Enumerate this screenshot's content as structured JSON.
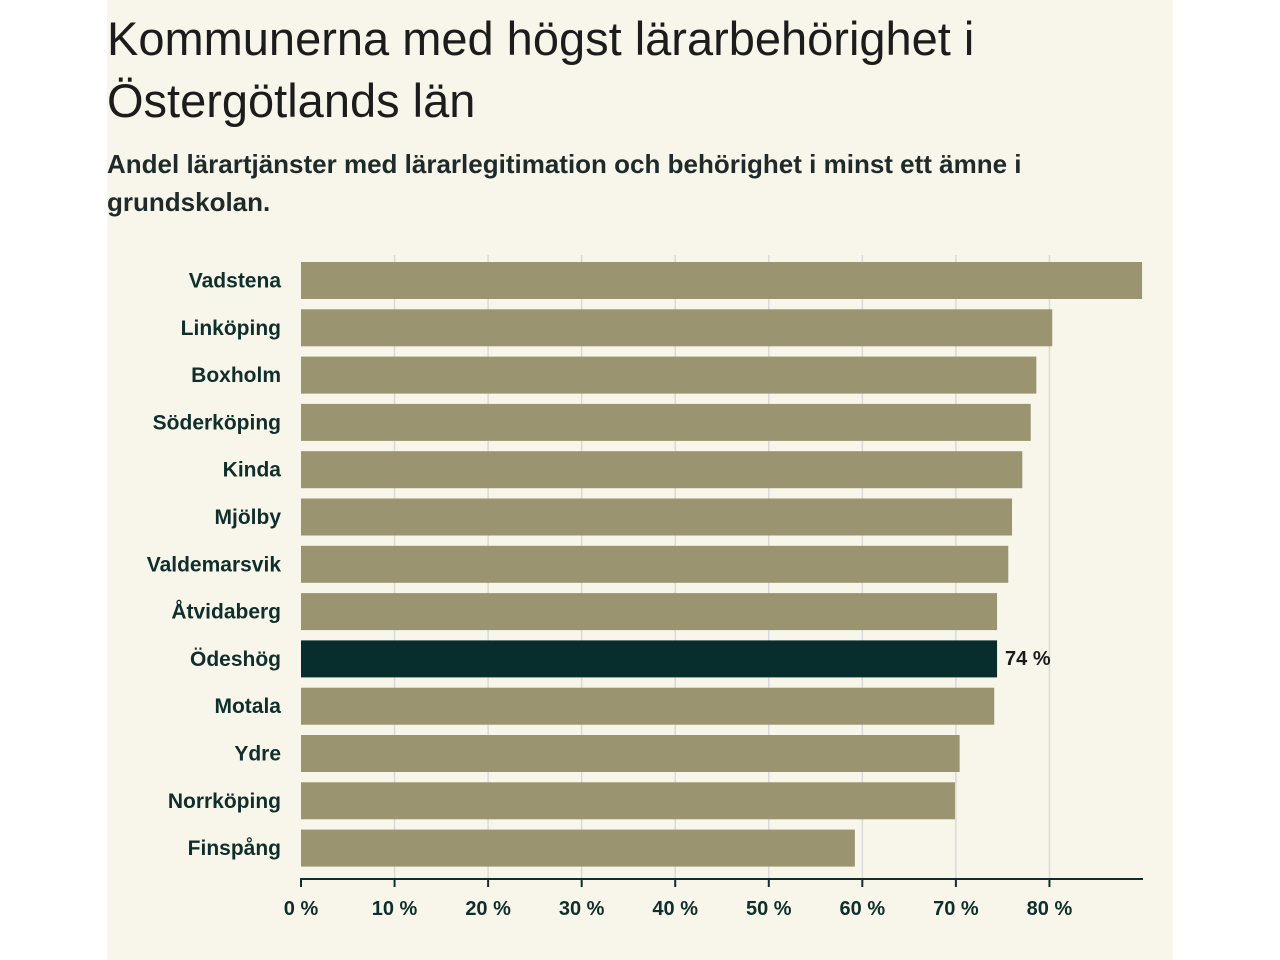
{
  "chart_data": {
    "type": "bar",
    "orientation": "horizontal",
    "title": "Kommunerna med högst lärarbehörighet i Östergötlands län",
    "subtitle": "Andel lärartjänster med lärarlegitimation och behörighet i minst ett ämne i grundskolan.",
    "categories": [
      "Vadstena",
      "Linköping",
      "Boxholm",
      "Söderköping",
      "Kinda",
      "Mjölby",
      "Valdemarsvik",
      "Åtvidaberg",
      "Ödeshög",
      "Motala",
      "Ydre",
      "Norrköping",
      "Finspång"
    ],
    "values": [
      89.9,
      80.3,
      78.6,
      78.0,
      77.1,
      76.0,
      75.6,
      74.4,
      74.4,
      74.1,
      70.4,
      69.9,
      59.2
    ],
    "highlight": {
      "category": "Ödeshög",
      "label": "74 %"
    },
    "xlim": [
      0,
      90
    ],
    "xticks": [
      0,
      10,
      20,
      30,
      40,
      50,
      60,
      70,
      80
    ],
    "xtick_labels": [
      "0 %",
      "10 %",
      "20 %",
      "30 %",
      "40 %",
      "50 %",
      "60 %",
      "70 %",
      "80 %"
    ],
    "xlabel": "",
    "ylabel": "",
    "grid": true,
    "colors": {
      "bar": "#9a9470",
      "highlight": "#072e2c",
      "grid": "#d9d9d9",
      "axis": "#0f2e2c",
      "background": "#f8f6ea"
    }
  }
}
